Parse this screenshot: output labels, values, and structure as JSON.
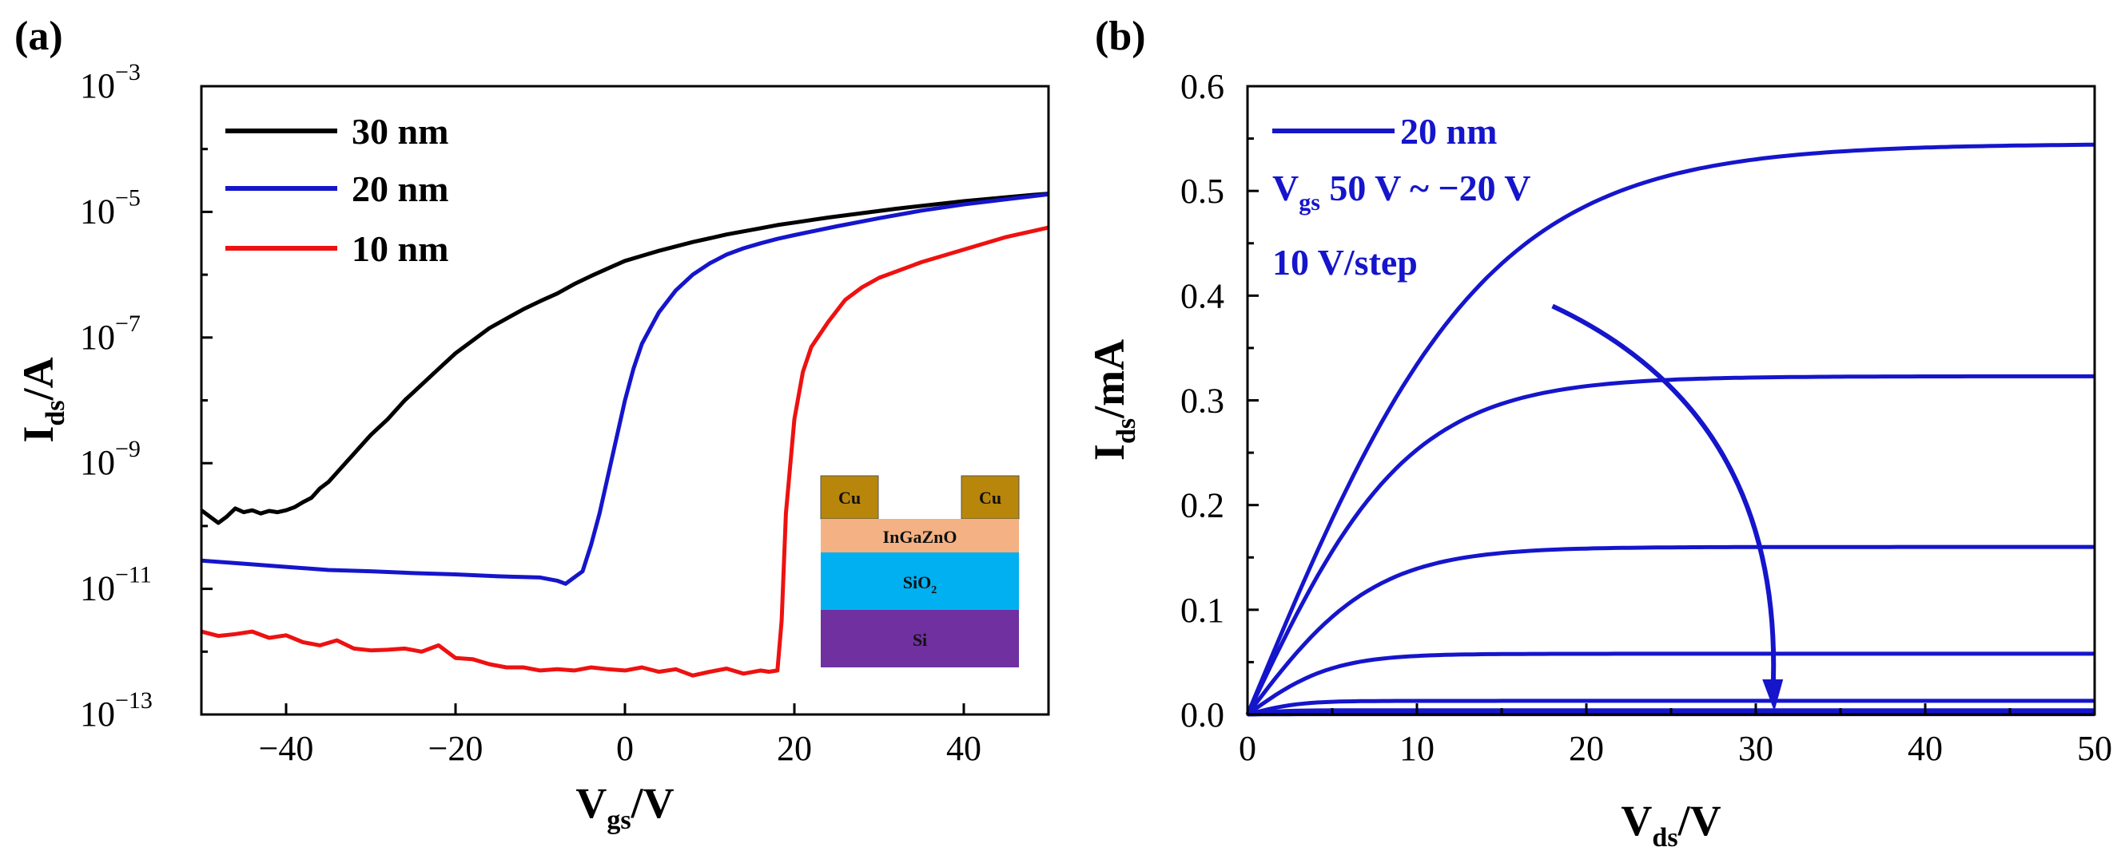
{
  "chart_data": [
    {
      "panel_label": "(a)",
      "type": "line",
      "y_scale": "log",
      "xlabel": {
        "main": "V",
        "sub": "gs",
        "unit": "/V"
      },
      "ylabel": {
        "main": "I",
        "sub": "ds",
        "unit": "/A"
      },
      "xlim": [
        -50,
        50
      ],
      "ylim_exponent": [
        -13,
        -3
      ],
      "x_ticks": [
        -40,
        -20,
        0,
        20,
        40
      ],
      "x_tick_labels": [
        "−40",
        "−20",
        "0",
        "20",
        "40"
      ],
      "y_ticks_exponent": [
        -13,
        -11,
        -9,
        -7,
        -5,
        -3
      ],
      "y_tick_labels": [
        {
          "base": "10",
          "exp": "−13"
        },
        {
          "base": "10",
          "exp": "−11"
        },
        {
          "base": "10",
          "exp": "−9"
        },
        {
          "base": "10",
          "exp": "−7"
        },
        {
          "base": "10",
          "exp": "−5"
        },
        {
          "base": "10",
          "exp": "−3"
        }
      ],
      "legend_position": "top-left",
      "series": [
        {
          "name": "30 nm",
          "color": "#000000",
          "x": [
            -50,
            -49,
            -48,
            -47,
            -46,
            -45,
            -44,
            -43,
            -42,
            -41,
            -40,
            -39,
            -38,
            -37,
            -36,
            -35,
            -34,
            -33,
            -32,
            -31,
            -30,
            -28,
            -26,
            -24,
            -22,
            -20,
            -18,
            -16,
            -14,
            -12,
            -10,
            -8,
            -6,
            -4,
            -2,
            0,
            2,
            4,
            6,
            8,
            10,
            12,
            14,
            16,
            18,
            20,
            24,
            28,
            32,
            36,
            40,
            44,
            48,
            50
          ],
          "log10_y": [
            -9.75,
            -9.85,
            -9.95,
            -9.85,
            -9.72,
            -9.78,
            -9.75,
            -9.8,
            -9.76,
            -9.78,
            -9.75,
            -9.7,
            -9.62,
            -9.55,
            -9.4,
            -9.3,
            -9.15,
            -9.0,
            -8.85,
            -8.7,
            -8.55,
            -8.3,
            -8.0,
            -7.75,
            -7.5,
            -7.25,
            -7.05,
            -6.85,
            -6.7,
            -6.55,
            -6.42,
            -6.3,
            -6.15,
            -6.02,
            -5.9,
            -5.78,
            -5.7,
            -5.62,
            -5.55,
            -5.48,
            -5.42,
            -5.36,
            -5.31,
            -5.26,
            -5.21,
            -5.17,
            -5.09,
            -5.02,
            -4.95,
            -4.89,
            -4.83,
            -4.78,
            -4.73,
            -4.71
          ]
        },
        {
          "name": "20 nm",
          "color": "#1515cc",
          "x": [
            -50,
            -45,
            -40,
            -35,
            -30,
            -25,
            -20,
            -15,
            -10,
            -8,
            -7,
            -6,
            -5,
            -4,
            -3,
            -2,
            -1,
            0,
            1,
            2,
            4,
            6,
            8,
            10,
            12,
            14,
            16,
            18,
            20,
            25,
            30,
            35,
            40,
            45,
            50
          ],
          "log10_y": [
            -10.55,
            -10.6,
            -10.65,
            -10.7,
            -10.72,
            -10.75,
            -10.77,
            -10.8,
            -10.82,
            -10.87,
            -10.92,
            -10.82,
            -10.72,
            -10.3,
            -9.8,
            -9.2,
            -8.6,
            -8.0,
            -7.5,
            -7.1,
            -6.6,
            -6.25,
            -6.0,
            -5.82,
            -5.68,
            -5.58,
            -5.5,
            -5.43,
            -5.37,
            -5.23,
            -5.1,
            -4.98,
            -4.88,
            -4.8,
            -4.72
          ]
        },
        {
          "name": "10 nm",
          "color": "#ee1111",
          "x": [
            -50,
            -48,
            -46,
            -44,
            -42,
            -40,
            -38,
            -36,
            -34,
            -32,
            -30,
            -28,
            -26,
            -24,
            -22,
            -20,
            -18,
            -16,
            -14,
            -12,
            -10,
            -8,
            -6,
            -4,
            -2,
            0,
            2,
            4,
            6,
            8,
            10,
            12,
            14,
            16,
            17,
            18,
            18.5,
            19,
            20,
            21,
            22,
            24,
            26,
            28,
            30,
            35,
            40,
            45,
            50
          ],
          "log10_y": [
            -11.68,
            -11.75,
            -11.72,
            -11.68,
            -11.78,
            -11.74,
            -11.85,
            -11.9,
            -11.82,
            -11.95,
            -11.98,
            -11.97,
            -11.95,
            -12.0,
            -11.9,
            -12.1,
            -12.12,
            -12.2,
            -12.25,
            -12.25,
            -12.3,
            -12.28,
            -12.3,
            -12.25,
            -12.28,
            -12.3,
            -12.25,
            -12.32,
            -12.28,
            -12.38,
            -12.32,
            -12.27,
            -12.35,
            -12.3,
            -12.32,
            -12.3,
            -11.5,
            -9.8,
            -8.3,
            -7.55,
            -7.15,
            -6.75,
            -6.4,
            -6.2,
            -6.05,
            -5.8,
            -5.6,
            -5.4,
            -5.25
          ]
        }
      ],
      "inset": {
        "layers": [
          {
            "label": "Cu",
            "color": "#b8860b"
          },
          {
            "label": "Cu",
            "color": "#b8860b"
          },
          {
            "label": "InGaZnO",
            "color": "#f4b183"
          },
          {
            "label": "SiO",
            "sub": "2",
            "color": "#00b0f0"
          },
          {
            "label": "Si",
            "color": "#7030a0"
          }
        ]
      }
    },
    {
      "panel_label": "(b)",
      "type": "line",
      "xlabel": {
        "main": "V",
        "sub": "ds",
        "unit": "/V"
      },
      "ylabel": {
        "main": "I",
        "sub": "ds",
        "unit": "/mA"
      },
      "xlim": [
        0,
        50
      ],
      "ylim": [
        0,
        0.6
      ],
      "x_ticks": [
        0,
        10,
        20,
        30,
        40,
        50
      ],
      "x_tick_labels": [
        "0",
        "10",
        "20",
        "30",
        "40",
        "50"
      ],
      "y_ticks": [
        0.0,
        0.1,
        0.2,
        0.3,
        0.4,
        0.5,
        0.6
      ],
      "y_tick_labels": [
        "0.0",
        "0.1",
        "0.2",
        "0.3",
        "0.4",
        "0.5",
        "0.6"
      ],
      "color": "#1515cc",
      "legend": {
        "series_name": "20 nm",
        "line2_prefix": "V",
        "line2_sub": "gs",
        "line2_rest": " 50 V ~ −20 V",
        "line3": "10 V/step"
      },
      "series": [
        {
          "name": "Vgs = 50 V",
          "saturation_mA": 0.545,
          "knee_V": 14
        },
        {
          "name": "Vgs = 40 V",
          "saturation_mA": 0.323,
          "knee_V": 9.5
        },
        {
          "name": "Vgs = 30 V",
          "saturation_mA": 0.16,
          "knee_V": 7.5
        },
        {
          "name": "Vgs = 20 V",
          "saturation_mA": 0.058,
          "knee_V": 5
        },
        {
          "name": "Vgs = 10 V",
          "saturation_mA": 0.013,
          "knee_V": 3
        },
        {
          "name": "Vgs = 0 V",
          "saturation_mA": 0.004,
          "knee_V": 2
        },
        {
          "name": "Vgs = -10 V",
          "saturation_mA": 0.001,
          "knee_V": 2
        },
        {
          "name": "Vgs = -20 V",
          "saturation_mA": 0.0003,
          "knee_V": 2
        }
      ],
      "arrow": {
        "from": [
          18,
          0.39
        ],
        "to": [
          31,
          0.0
        ],
        "meaning": "decreasing Vgs"
      }
    }
  ]
}
